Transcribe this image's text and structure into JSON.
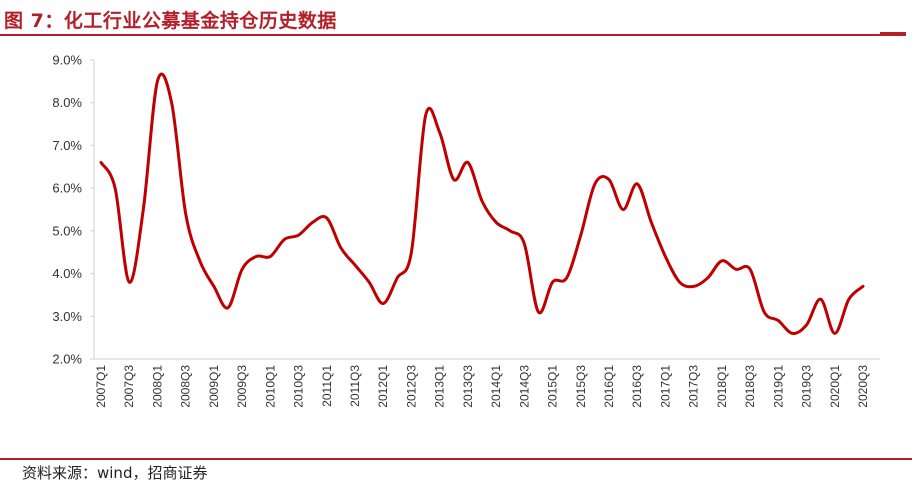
{
  "header": {
    "title": "图 7：化工行业公募基金持仓历史数据"
  },
  "footer": {
    "source": "资料来源：wind，招商证券"
  },
  "colors": {
    "accent": "#b3202a",
    "line": "#c00000",
    "axis": "#d0d0d0"
  },
  "chart_data": {
    "type": "line",
    "title": "",
    "xlabel": "",
    "ylabel": "",
    "ylim": [
      0.02,
      0.09
    ],
    "yticks": [
      "2.0%",
      "3.0%",
      "4.0%",
      "5.0%",
      "6.0%",
      "7.0%",
      "8.0%",
      "9.0%"
    ],
    "grid": false,
    "x": [
      "2007Q1",
      "2007Q2",
      "2007Q3",
      "2007Q4",
      "2008Q1",
      "2008Q2",
      "2008Q3",
      "2008Q4",
      "2009Q1",
      "2009Q2",
      "2009Q3",
      "2009Q4",
      "2010Q1",
      "2010Q2",
      "2010Q3",
      "2010Q4",
      "2011Q1",
      "2011Q2",
      "2011Q3",
      "2011Q4",
      "2012Q1",
      "2012Q2",
      "2012Q3",
      "2012Q4",
      "2013Q1",
      "2013Q2",
      "2013Q3",
      "2013Q4",
      "2014Q1",
      "2014Q2",
      "2014Q3",
      "2014Q4",
      "2015Q1",
      "2015Q2",
      "2015Q3",
      "2015Q4",
      "2016Q1",
      "2016Q2",
      "2016Q3",
      "2016Q4",
      "2017Q1",
      "2017Q2",
      "2017Q3",
      "2017Q4",
      "2018Q1",
      "2018Q2",
      "2018Q3",
      "2018Q4",
      "2019Q1",
      "2019Q2",
      "2019Q3",
      "2019Q4",
      "2020Q1",
      "2020Q2",
      "2020Q3"
    ],
    "xticks": [
      "2007Q1",
      "2007Q3",
      "2008Q1",
      "2008Q3",
      "2009Q1",
      "2009Q3",
      "2010Q1",
      "2010Q3",
      "2011Q1",
      "2011Q3",
      "2012Q1",
      "2012Q3",
      "2013Q1",
      "2013Q3",
      "2014Q1",
      "2014Q3",
      "2015Q1",
      "2015Q3",
      "2016Q1",
      "2016Q3",
      "2017Q1",
      "2017Q3",
      "2018Q1",
      "2018Q3",
      "2019Q1",
      "2019Q3",
      "2020Q1",
      "2020Q3"
    ],
    "series": [
      {
        "values": [
          0.066,
          0.06,
          0.038,
          0.055,
          0.085,
          0.08,
          0.054,
          0.043,
          0.037,
          0.032,
          0.041,
          0.044,
          0.044,
          0.048,
          0.049,
          0.052,
          0.053,
          0.046,
          0.042,
          0.038,
          0.033,
          0.039,
          0.045,
          0.077,
          0.073,
          0.062,
          0.066,
          0.057,
          0.052,
          0.05,
          0.047,
          0.031,
          0.038,
          0.039,
          0.049,
          0.061,
          0.062,
          0.055,
          0.061,
          0.052,
          0.044,
          0.038,
          0.037,
          0.039,
          0.043,
          0.041,
          0.041,
          0.031,
          0.029,
          0.026,
          0.028,
          0.034,
          0.026,
          0.034,
          0.037
        ]
      }
    ]
  }
}
